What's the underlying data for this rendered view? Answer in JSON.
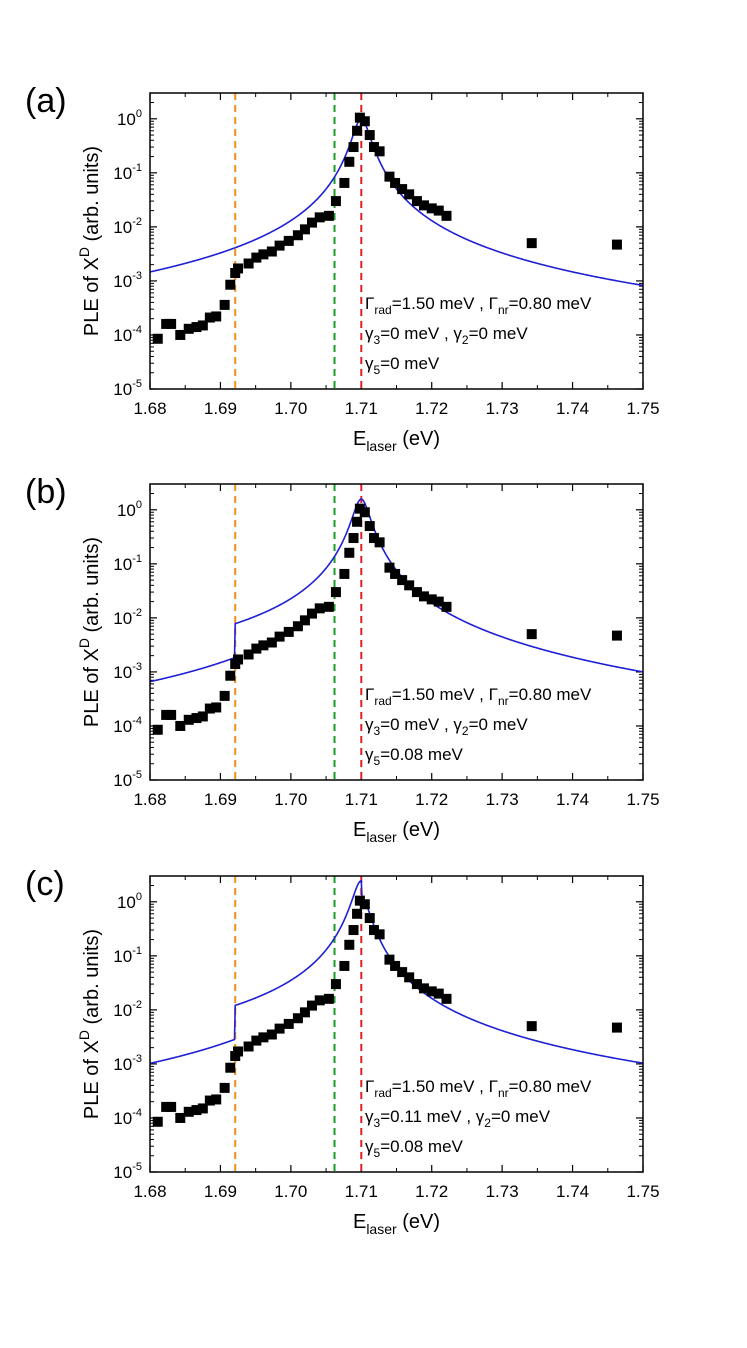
{
  "colors": {
    "data_marker": "#000000",
    "fit_line": "#1f1fd6",
    "vline_orange": "#f0901a",
    "vline_green": "#1a9c2a",
    "vline_red": "#e02020"
  },
  "chart_data": [
    {
      "type": "scatter",
      "panel_label": "(a)",
      "xlabel": "E",
      "xlabel_sub": "laser",
      "xlabel_unit": " (eV)",
      "ylabel": "PLE of X",
      "ylabel_sup": "D",
      "ylabel_unit": " (arb. units)",
      "xlim": [
        1.68,
        1.75
      ],
      "ylim": [
        1e-05,
        3
      ],
      "yscale": "log",
      "xticks": [
        "1.68",
        "1.69",
        "1.70",
        "1.71",
        "1.72",
        "1.73",
        "1.74",
        "1.75"
      ],
      "yticks": [
        {
          "base": "10",
          "exp": "0"
        },
        {
          "base": "10",
          "exp": "-1"
        },
        {
          "base": "10",
          "exp": "-2"
        },
        {
          "base": "10",
          "exp": "-3"
        },
        {
          "base": "10",
          "exp": "-4"
        },
        {
          "base": "10",
          "exp": "-5"
        }
      ],
      "vlines": [
        1.6921,
        1.7062,
        1.71
      ],
      "annotations": [
        {
          "sym": "Γ",
          "sub": "rad",
          "text": "=1.50 meV , ",
          "sym2": "Γ",
          "sub2": "nr",
          "text2": "=0.80 meV"
        },
        {
          "sym": "γ",
          "sub": "3",
          "text": "=0 meV , ",
          "sym2": "γ",
          "sub2": "2",
          "text2": "=0 meV"
        },
        {
          "sym": "γ",
          "sub": "5",
          "text": "=0 meV"
        }
      ],
      "fit": {
        "g5": 0,
        "g3": 0
      }
    },
    {
      "type": "scatter",
      "panel_label": "(b)",
      "xlabel": "E",
      "xlabel_sub": "laser",
      "xlabel_unit": " (eV)",
      "ylabel": "PLE of X",
      "ylabel_sup": "D",
      "ylabel_unit": " (arb. units)",
      "xlim": [
        1.68,
        1.75
      ],
      "ylim": [
        1e-05,
        3
      ],
      "yscale": "log",
      "xticks": [
        "1.68",
        "1.69",
        "1.70",
        "1.71",
        "1.72",
        "1.73",
        "1.74",
        "1.75"
      ],
      "yticks": [
        {
          "base": "10",
          "exp": "0"
        },
        {
          "base": "10",
          "exp": "-1"
        },
        {
          "base": "10",
          "exp": "-2"
        },
        {
          "base": "10",
          "exp": "-3"
        },
        {
          "base": "10",
          "exp": "-4"
        },
        {
          "base": "10",
          "exp": "-5"
        }
      ],
      "vlines": [
        1.6921,
        1.7062,
        1.71
      ],
      "annotations": [
        {
          "sym": "Γ",
          "sub": "rad",
          "text": "=1.50 meV , ",
          "sym2": "Γ",
          "sub2": "nr",
          "text2": "=0.80 meV"
        },
        {
          "sym": "γ",
          "sub": "3",
          "text": "=0 meV , ",
          "sym2": "γ",
          "sub2": "2",
          "text2": "=0 meV"
        },
        {
          "sym": "γ",
          "sub": "5",
          "text": "=0.08 meV"
        }
      ],
      "fit": {
        "g5": 0.08,
        "g3": 0
      }
    },
    {
      "type": "scatter",
      "panel_label": "(c)",
      "xlabel": "E",
      "xlabel_sub": "laser",
      "xlabel_unit": " (eV)",
      "ylabel": "PLE of X",
      "ylabel_sup": "D",
      "ylabel_unit": " (arb. units)",
      "xlim": [
        1.68,
        1.75
      ],
      "ylim": [
        1e-05,
        3
      ],
      "yscale": "log",
      "xticks": [
        "1.68",
        "1.69",
        "1.70",
        "1.71",
        "1.72",
        "1.73",
        "1.74",
        "1.75"
      ],
      "yticks": [
        {
          "base": "10",
          "exp": "0"
        },
        {
          "base": "10",
          "exp": "-1"
        },
        {
          "base": "10",
          "exp": "-2"
        },
        {
          "base": "10",
          "exp": "-3"
        },
        {
          "base": "10",
          "exp": "-4"
        },
        {
          "base": "10",
          "exp": "-5"
        }
      ],
      "vlines": [
        1.6921,
        1.7062,
        1.71
      ],
      "annotations": [
        {
          "sym": "Γ",
          "sub": "rad",
          "text": "=1.50 meV , ",
          "sym2": "Γ",
          "sub2": "nr",
          "text2": "=0.80 meV"
        },
        {
          "sym": "γ",
          "sub": "3",
          "text": "=0.11 meV , ",
          "sym2": "γ",
          "sub2": "2",
          "text2": "=0 meV"
        },
        {
          "sym": "γ",
          "sub": "5",
          "text": "=0.08 meV"
        }
      ],
      "fit": {
        "g5": 0.08,
        "g3": 0.11
      }
    }
  ],
  "measured_points": {
    "x": [
      1.6811,
      1.6823,
      1.683,
      1.6843,
      1.6855,
      1.6866,
      1.6875,
      1.6885,
      1.6894,
      1.6906,
      1.6914,
      1.6921,
      1.6925,
      1.694,
      1.6951,
      1.6961,
      1.6973,
      1.6984,
      1.6997,
      1.701,
      1.702,
      1.703,
      1.7041,
      1.7054,
      1.7064,
      1.7076,
      1.7083,
      1.7089,
      1.7094,
      1.7098,
      1.7105,
      1.7112,
      1.7118,
      1.7126,
      1.714,
      1.7148,
      1.7158,
      1.7168,
      1.7179,
      1.7189,
      1.72,
      1.721,
      1.7221,
      1.7342,
      1.7463
    ],
    "y": [
      8.5e-05,
      0.00016,
      0.00016,
      0.0001,
      0.00013,
      0.00014,
      0.00015,
      0.00021,
      0.00022,
      0.00036,
      0.00085,
      0.0014,
      0.0017,
      0.0021,
      0.0027,
      0.0031,
      0.0035,
      0.0045,
      0.0055,
      0.007,
      0.009,
      0.012,
      0.015,
      0.016,
      0.03,
      0.065,
      0.16,
      0.3,
      0.6,
      1.05,
      0.9,
      0.5,
      0.3,
      0.25,
      0.085,
      0.065,
      0.05,
      0.04,
      0.03,
      0.025,
      0.022,
      0.02,
      0.016,
      0.005,
      0.0047
    ]
  }
}
